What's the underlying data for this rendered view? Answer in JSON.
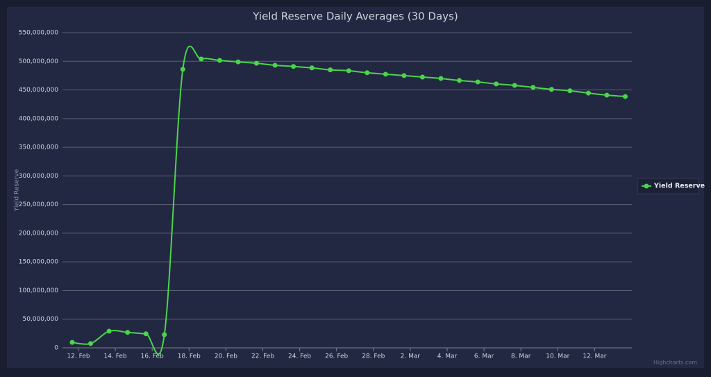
{
  "chart_data": {
    "type": "line",
    "title": "Yield Reserve Daily Averages (30 Days)",
    "y_label": "Yield Reserve",
    "credit": "Highcharts.com",
    "categories": [
      "12. Feb",
      null,
      "14. Feb",
      null,
      "16. Feb",
      null,
      "18. Feb",
      null,
      "20. Feb",
      null,
      "22. Feb",
      null,
      "24. Feb",
      null,
      "26. Feb",
      null,
      "28. Feb",
      null,
      "2. Mar",
      null,
      "4. Mar",
      null,
      "6. Mar",
      null,
      "8. Mar",
      null,
      "10. Mar",
      null,
      "12. Mar",
      null,
      null
    ],
    "series": [
      {
        "name": "Yield Reserve",
        "color": "#4cd44c",
        "values": [
          9500000,
          7500000,
          29000000,
          27000000,
          24500000,
          23000000,
          486000000,
          504000000,
          501500000,
          499000000,
          496500000,
          493000000,
          491000000,
          488500000,
          485000000,
          483500000,
          480000000,
          477500000,
          475000000,
          472500000,
          470000000,
          466500000,
          464000000,
          460500000,
          458000000,
          454500000,
          451000000,
          448500000,
          444500000,
          441000000,
          438500000
        ]
      }
    ],
    "ylim": [
      0,
      550000000
    ],
    "yticks": [
      0,
      {
        "value": 50000000,
        "label": "50,000,000"
      },
      {
        "value": 100000000,
        "label": "100,000,000"
      },
      {
        "value": 150000000,
        "label": "150,000,000"
      },
      {
        "value": 200000000,
        "label": "200,000,000"
      },
      {
        "value": 250000000,
        "label": "250,000,000"
      },
      {
        "value": 300000000,
        "label": "300,000,000"
      },
      {
        "value": 350000000,
        "label": "350,000,000"
      },
      {
        "value": 400000000,
        "label": "400,000,000"
      },
      {
        "value": 450000000,
        "label": "450,000,000"
      },
      {
        "value": 500000000,
        "label": "500,000,000"
      },
      {
        "value": 550000000,
        "label": "550,000,000"
      }
    ],
    "grid": true,
    "legend": "right",
    "smooth": true
  }
}
